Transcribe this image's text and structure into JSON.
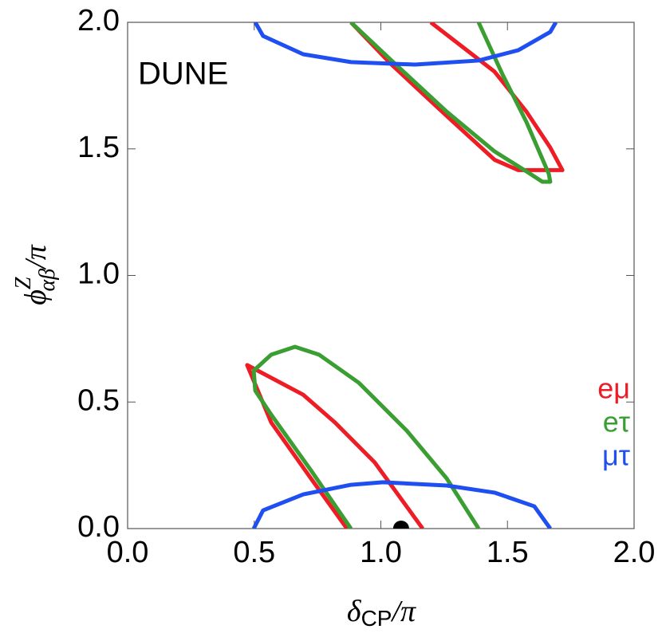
{
  "chart_data": {
    "type": "line",
    "annotation": "DUNE",
    "xlabel": [
      "δ",
      "CP",
      "/π"
    ],
    "ylabel": [
      "ϕ",
      "Z",
      "αβ",
      "/π"
    ],
    "xlim": [
      0,
      2
    ],
    "ylim": [
      0,
      2
    ],
    "xticks": [
      {
        "value": 0,
        "label": "0.0"
      },
      {
        "value": 0.5,
        "label": "0.5"
      },
      {
        "value": 1,
        "label": "1.0"
      },
      {
        "value": 1.5,
        "label": "1.5"
      },
      {
        "value": 2,
        "label": "2.0"
      }
    ],
    "yticks": [
      {
        "value": 0,
        "label": "0.0"
      },
      {
        "value": 0.5,
        "label": "0.5"
      },
      {
        "value": 1,
        "label": "1.0"
      },
      {
        "value": 1.5,
        "label": "1.5"
      },
      {
        "value": 2,
        "label": "2.0"
      }
    ],
    "series": [
      {
        "name": "eμ",
        "color": "#ee1c25",
        "x": [
          0.882,
          1.039,
          1.26,
          1.449,
          1.543,
          1.717,
          1.669,
          1.575,
          1.449,
          1.197,
          null,
          0.866,
          0.724,
          0.567,
          0.472,
          0.693,
          0.819,
          0.976,
          1.165
        ],
        "values": [
          2.0,
          1.836,
          1.63,
          1.457,
          1.416,
          1.416,
          1.505,
          1.647,
          1.805,
          2.0,
          null,
          0,
          0.198,
          0.419,
          0.646,
          0.529,
          0.419,
          0.261,
          0
        ]
      },
      {
        "name": "eτ",
        "color": "#3a9e32",
        "x": [
          0.882,
          1.039,
          1.26,
          1.449,
          1.575,
          1.638,
          1.669,
          1.663,
          1.575,
          1.48,
          1.386,
          null,
          0.882,
          0.724,
          0.567,
          0.504,
          0.498,
          0.567,
          0.661,
          0.756,
          0.913,
          1.102,
          1.26,
          1.386
        ],
        "values": [
          2.0,
          1.852,
          1.647,
          1.49,
          1.411,
          1.37,
          1.37,
          1.402,
          1.606,
          1.795,
          2.0,
          null,
          0,
          0.23,
          0.45,
          0.545,
          0.624,
          0.687,
          0.718,
          0.687,
          0.576,
          0.387,
          0.198,
          0
        ]
      },
      {
        "name": "μτ",
        "color": "#1f4ff0",
        "x": [
          0.504,
          0.535,
          0.693,
          0.882,
          1.134,
          1.386,
          1.543,
          1.669,
          1.691,
          null,
          0.498,
          0.535,
          0.693,
          0.882,
          1.008,
          1.26,
          1.449,
          1.606,
          1.669
        ],
        "values": [
          2.0,
          1.946,
          1.874,
          1.843,
          1.833,
          1.849,
          1.89,
          1.962,
          2.0,
          null,
          0,
          0.072,
          0.135,
          0.173,
          0.183,
          0.17,
          0.142,
          0.088,
          0
        ]
      }
    ],
    "points": [
      {
        "x": 1.08,
        "y": 0,
        "color": "#000000"
      }
    ]
  }
}
